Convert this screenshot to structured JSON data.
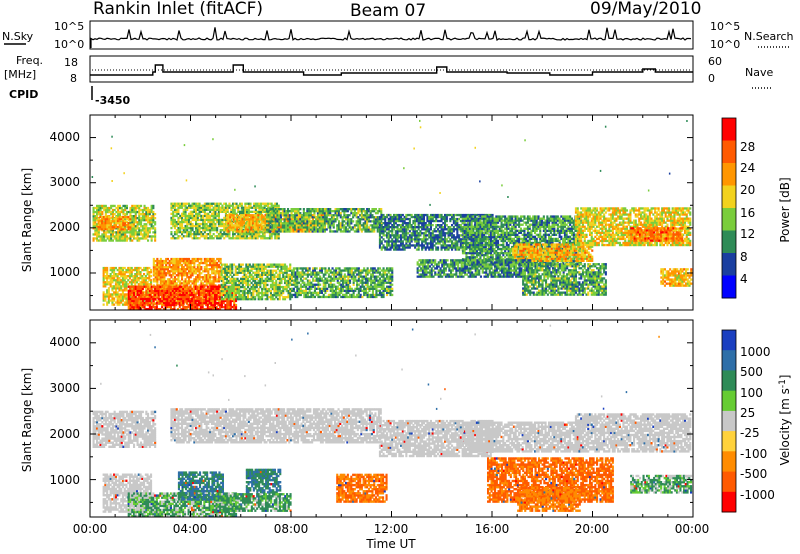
{
  "header": {
    "station": "Rankin Inlet (fitACF)",
    "beam": "Beam 07",
    "date": "09/May/2010"
  },
  "summary_panels": {
    "nsky_label": "N.Sky",
    "nsearch_label": "N.Search",
    "nsky_ticks": [
      "10^5",
      "10^0"
    ],
    "freq_label_1": "Freq.",
    "freq_label_2": "[MHz]",
    "freq_ticks": [
      "18",
      "8"
    ],
    "nave_label": "Nave",
    "nave_ticks": [
      "60",
      "0"
    ],
    "cpid_label": "CPID",
    "cpid_value": "-3450"
  },
  "chart_data": [
    {
      "type": "heatmap",
      "name": "power",
      "xlabel": "Time UT",
      "ylabel": "Slant Range [km]",
      "colorbar_label": "Power [dB]",
      "colorbar_ticks": [
        "28",
        "24",
        "20",
        "16",
        "12",
        "8",
        "4"
      ],
      "colorbar_colors": [
        "#ff0000",
        "#ff5a00",
        "#ff9600",
        "#f2d21e",
        "#7acd3c",
        "#2e8b57",
        "#1a3fa0",
        "#0000ff"
      ],
      "xlim": [
        0,
        24
      ],
      "ylim": [
        180,
        4500
      ],
      "x_ticks": [
        0,
        4,
        8,
        12,
        16,
        20,
        24
      ],
      "y_ticks": [
        1000,
        2000,
        3000,
        4000
      ],
      "regions": [
        {
          "t0": 0.1,
          "t1": 2.6,
          "r0": 1700,
          "r1": 2500,
          "db": 16
        },
        {
          "t0": 0.3,
          "t1": 1.6,
          "r0": 1950,
          "r1": 2250,
          "db": 22
        },
        {
          "t0": 3.2,
          "t1": 7.5,
          "r0": 1750,
          "r1": 2550,
          "db": 15
        },
        {
          "t0": 5.4,
          "t1": 9.3,
          "r0": 1900,
          "r1": 2300,
          "db": 20
        },
        {
          "t0": 7.0,
          "t1": 11.6,
          "r0": 1900,
          "r1": 2400,
          "db": 12
        },
        {
          "t0": 11.5,
          "t1": 16.0,
          "r0": 1500,
          "r1": 2300,
          "db": 9
        },
        {
          "t0": 14.8,
          "t1": 19.5,
          "r0": 1150,
          "r1": 2250,
          "db": 11
        },
        {
          "t0": 16.8,
          "t1": 20.0,
          "r0": 1250,
          "r1": 1650,
          "db": 20
        },
        {
          "t0": 19.3,
          "t1": 23.9,
          "r0": 1600,
          "r1": 2450,
          "db": 18
        },
        {
          "t0": 21.5,
          "t1": 23.6,
          "r0": 1700,
          "r1": 2000,
          "db": 24
        },
        {
          "t0": 22.7,
          "t1": 23.9,
          "r0": 700,
          "r1": 1100,
          "db": 20
        },
        {
          "t0": 0.5,
          "t1": 2.4,
          "r0": 280,
          "r1": 1100,
          "db": 18
        },
        {
          "t0": 2.5,
          "t1": 5.2,
          "r0": 300,
          "r1": 1300,
          "db": 22
        },
        {
          "t0": 1.5,
          "t1": 5.8,
          "r0": 180,
          "r1": 700,
          "db": 28
        },
        {
          "t0": 5.2,
          "t1": 8.0,
          "r0": 400,
          "r1": 1200,
          "db": 14
        },
        {
          "t0": 8.0,
          "t1": 12.0,
          "r0": 450,
          "r1": 1100,
          "db": 12
        },
        {
          "t0": 13.0,
          "t1": 17.5,
          "r0": 900,
          "r1": 1300,
          "db": 10
        },
        {
          "t0": 17.2,
          "t1": 20.5,
          "r0": 500,
          "r1": 1200,
          "db": 12
        }
      ]
    },
    {
      "type": "heatmap",
      "name": "velocity",
      "xlabel": "Time UT",
      "ylabel": "Slant Range [km]",
      "colorbar_label": "Velocity [m s^-1]",
      "colorbar_ticks": [
        "1000",
        "500",
        "100",
        "25",
        "-25",
        "-100",
        "-500",
        "-1000"
      ],
      "colorbar_colors": [
        "#1a3fc0",
        "#2e6fa8",
        "#2e8b57",
        "#66cc33",
        "#c8c8c8",
        "#ffd23c",
        "#ff8c00",
        "#ff5a00",
        "#ff0000"
      ],
      "xlim": [
        0,
        24
      ],
      "ylim": [
        180,
        4500
      ],
      "x_ticks": [
        0,
        4,
        8,
        12,
        16,
        20,
        24
      ],
      "y_ticks": [
        1000,
        2000,
        3000,
        4000
      ],
      "regions": [
        {
          "t0": 0.1,
          "t1": 2.6,
          "r0": 1700,
          "r1": 2500,
          "v": 0
        },
        {
          "t0": 3.2,
          "t1": 11.6,
          "r0": 1800,
          "r1": 2550,
          "v": 0
        },
        {
          "t0": 11.5,
          "t1": 16.0,
          "r0": 1500,
          "r1": 2300,
          "v": 0
        },
        {
          "t0": 14.8,
          "t1": 19.5,
          "r0": 1600,
          "r1": 2250,
          "v": 0
        },
        {
          "t0": 19.3,
          "t1": 23.9,
          "r0": 1600,
          "r1": 2450,
          "v": 0
        },
        {
          "t0": 0.5,
          "t1": 2.4,
          "r0": 280,
          "r1": 1100,
          "v": 0
        },
        {
          "t0": 1.5,
          "t1": 5.8,
          "r0": 180,
          "r1": 700,
          "v": 60
        },
        {
          "t0": 3.5,
          "t1": 5.3,
          "r0": 550,
          "r1": 1150,
          "v": 300
        },
        {
          "t0": 6.2,
          "t1": 7.6,
          "r0": 700,
          "r1": 1200,
          "v": 300
        },
        {
          "t0": 5.0,
          "t1": 8.0,
          "r0": 300,
          "r1": 700,
          "v": 80
        },
        {
          "t0": 9.8,
          "t1": 11.8,
          "r0": 500,
          "r1": 1100,
          "v": -300
        },
        {
          "t0": 15.8,
          "t1": 20.8,
          "r0": 500,
          "r1": 1450,
          "v": -400
        },
        {
          "t0": 17.0,
          "t1": 19.5,
          "r0": 300,
          "r1": 800,
          "v": -250
        },
        {
          "t0": 21.5,
          "t1": 23.9,
          "r0": 700,
          "r1": 1100,
          "v": 60
        }
      ]
    }
  ],
  "time_ticks": [
    "00:00",
    "04:00",
    "08:00",
    "12:00",
    "16:00",
    "20:00",
    "00:00"
  ],
  "range_ticks": [
    "1000",
    "2000",
    "3000",
    "4000"
  ]
}
